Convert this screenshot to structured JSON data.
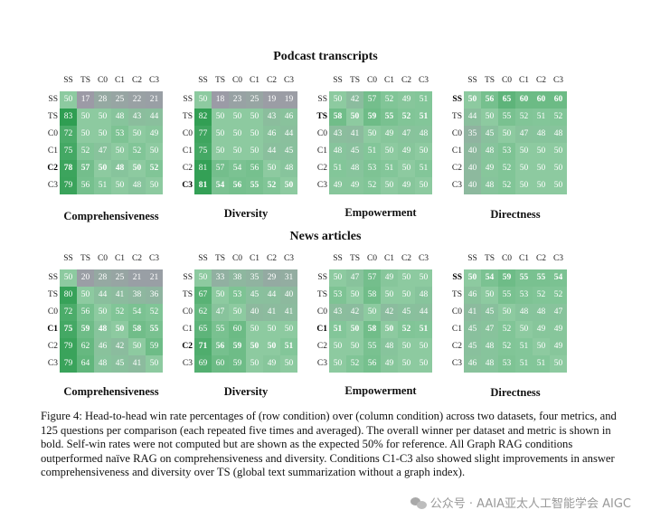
{
  "section_titles": [
    "Podcast transcripts",
    "News articles"
  ],
  "col_labels": [
    "SS",
    "TS",
    "C0",
    "C1",
    "C2",
    "C3"
  ],
  "row_labels": [
    "SS",
    "TS",
    "C0",
    "C1",
    "C2",
    "C3"
  ],
  "colors": {
    "green": "#2f9e52",
    "grey": "#9c9aa6"
  },
  "panels": [
    {
      "title": "Comprehensiveness",
      "bold_row": 4,
      "values": [
        [
          50,
          17,
          28,
          25,
          22,
          21
        ],
        [
          83,
          50,
          50,
          48,
          43,
          44
        ],
        [
          72,
          50,
          50,
          53,
          50,
          49
        ],
        [
          75,
          52,
          47,
          50,
          52,
          50
        ],
        [
          78,
          57,
          50,
          48,
          50,
          52
        ],
        [
          79,
          56,
          51,
          50,
          48,
          50
        ]
      ]
    },
    {
      "title": "Diversity",
      "bold_row": 5,
      "values": [
        [
          50,
          18,
          23,
          25,
          19,
          19
        ],
        [
          82,
          50,
          50,
          50,
          43,
          46
        ],
        [
          77,
          50,
          50,
          50,
          46,
          44
        ],
        [
          75,
          50,
          50,
          50,
          44,
          45
        ],
        [
          81,
          57,
          54,
          56,
          50,
          48
        ],
        [
          81,
          54,
          56,
          55,
          52,
          50
        ]
      ]
    },
    {
      "title": "Empowerment",
      "bold_row": 1,
      "values": [
        [
          50,
          42,
          57,
          52,
          49,
          51
        ],
        [
          58,
          50,
          59,
          55,
          52,
          51
        ],
        [
          43,
          41,
          50,
          49,
          47,
          48
        ],
        [
          48,
          45,
          51,
          50,
          49,
          50
        ],
        [
          51,
          48,
          53,
          51,
          50,
          51
        ],
        [
          49,
          49,
          52,
          50,
          49,
          50
        ]
      ]
    },
    {
      "title": "Directness",
      "bold_row": 0,
      "values": [
        [
          50,
          56,
          65,
          60,
          60,
          60
        ],
        [
          44,
          50,
          55,
          52,
          51,
          52
        ],
        [
          35,
          45,
          50,
          47,
          48,
          48
        ],
        [
          40,
          48,
          53,
          50,
          50,
          50
        ],
        [
          40,
          49,
          52,
          50,
          50,
          50
        ],
        [
          40,
          48,
          52,
          50,
          50,
          50
        ]
      ]
    },
    {
      "title": "Comprehensiveness",
      "bold_row": 3,
      "values": [
        [
          50,
          20,
          28,
          25,
          21,
          21
        ],
        [
          80,
          50,
          44,
          41,
          38,
          36
        ],
        [
          72,
          56,
          50,
          52,
          54,
          52
        ],
        [
          75,
          59,
          48,
          50,
          58,
          55
        ],
        [
          79,
          62,
          46,
          42,
          50,
          59
        ],
        [
          79,
          64,
          48,
          45,
          41,
          50
        ]
      ]
    },
    {
      "title": "Diversity",
      "bold_row": 4,
      "values": [
        [
          50,
          33,
          38,
          35,
          29,
          31
        ],
        [
          67,
          50,
          53,
          45,
          44,
          40
        ],
        [
          62,
          47,
          50,
          40,
          41,
          41
        ],
        [
          65,
          55,
          60,
          50,
          50,
          50
        ],
        [
          71,
          56,
          59,
          50,
          50,
          51
        ],
        [
          69,
          60,
          59,
          50,
          49,
          50
        ]
      ]
    },
    {
      "title": "Empowerment",
      "bold_row": 3,
      "values": [
        [
          50,
          47,
          57,
          49,
          50,
          50
        ],
        [
          53,
          50,
          58,
          50,
          50,
          48
        ],
        [
          43,
          42,
          50,
          42,
          45,
          44
        ],
        [
          51,
          50,
          58,
          50,
          52,
          51
        ],
        [
          50,
          50,
          55,
          48,
          50,
          50
        ],
        [
          50,
          52,
          56,
          49,
          50,
          50
        ]
      ]
    },
    {
      "title": "Directness",
      "bold_row": 0,
      "values": [
        [
          50,
          54,
          59,
          55,
          55,
          54
        ],
        [
          46,
          50,
          55,
          53,
          52,
          52
        ],
        [
          41,
          45,
          50,
          48,
          48,
          47
        ],
        [
          45,
          47,
          52,
          50,
          49,
          49
        ],
        [
          45,
          48,
          52,
          51,
          50,
          49
        ],
        [
          46,
          48,
          53,
          51,
          51,
          50
        ]
      ]
    }
  ],
  "caption": "Figure 4: Head-to-head win rate percentages of (row condition) over (column condition) across two datasets, four metrics, and 125 questions per comparison (each repeated five times and averaged). The overall winner per dataset and metric is shown in bold. Self-win rates were not computed but are shown as the expected 50% for reference. All Graph RAG conditions outperformed naïve RAG on comprehensiveness and diversity. Conditions C1-C3 also showed slight improvements in answer comprehensiveness and diversity over TS (global text summarization without a graph index).",
  "watermark": "公众号 · AAIA亚太人工智能学会 AIGC"
}
